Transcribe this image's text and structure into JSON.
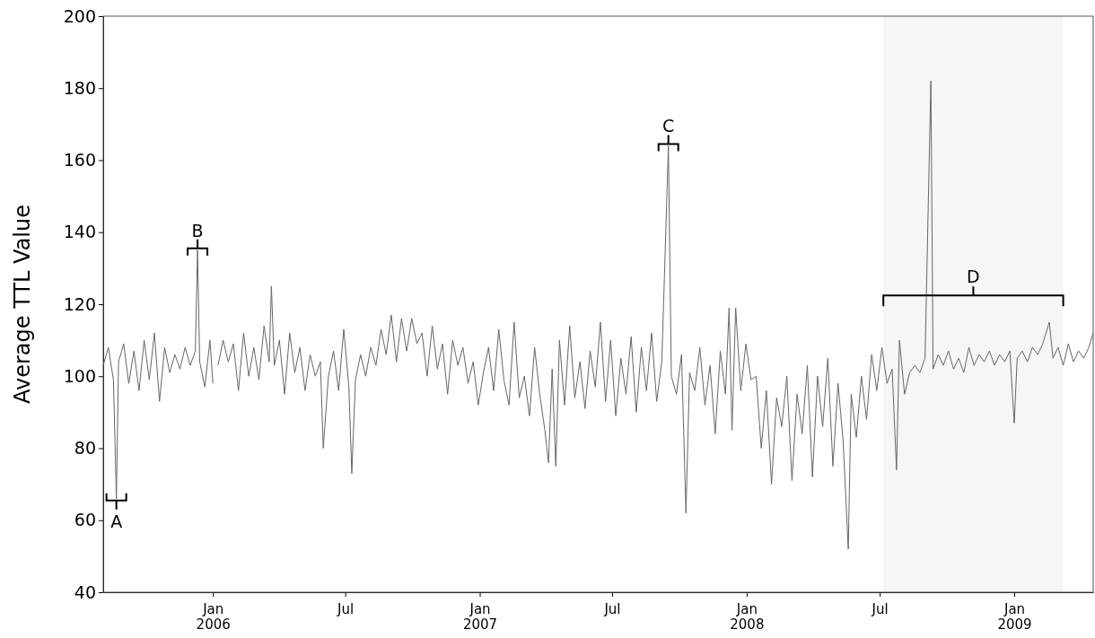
{
  "chart_data": {
    "type": "line",
    "ylabel": "Average TTL Value",
    "xlim": [
      "2005-08-04",
      "2009-04-19"
    ],
    "ylim": [
      40,
      200
    ],
    "yticks": [
      40,
      60,
      80,
      100,
      120,
      140,
      160,
      180,
      200
    ],
    "xticks": [
      {
        "value": "2006-01-01",
        "label": "Jan 2006"
      },
      {
        "value": "2006-07-01",
        "label": "Jul"
      },
      {
        "value": "2007-01-01",
        "label": "Jan 2007"
      },
      {
        "value": "2007-07-01",
        "label": "Jul"
      },
      {
        "value": "2008-01-01",
        "label": "Jan 2008"
      },
      {
        "value": "2008-07-01",
        "label": "Jul"
      },
      {
        "value": "2009-01-01",
        "label": "Jan 2009"
      }
    ],
    "grid": false,
    "marker": "none",
    "line_style": "solid",
    "annotations": [
      {
        "text": "A",
        "x": "2005-08-22",
        "y": 66
      },
      {
        "text": "B",
        "x": "2005-12-11",
        "y": 135
      },
      {
        "text": "C",
        "x": "2007-09-16",
        "y": 164
      }
    ],
    "bands": [
      {
        "axis": "x",
        "from": "2008-07-06",
        "to": "2009-03-09",
        "label": "D",
        "color": "#eeeeee"
      }
    ],
    "x": [
      "2005-08-04",
      "2005-08-11",
      "2005-08-18",
      "2005-08-22",
      "2005-08-25",
      "2005-09-01",
      "2005-09-08",
      "2005-09-15",
      "2005-09-22",
      "2005-09-29",
      "2005-10-06",
      "2005-10-13",
      "2005-10-20",
      "2005-10-27",
      "2005-11-03",
      "2005-11-10",
      "2005-11-17",
      "2005-11-24",
      "2005-12-01",
      "2005-12-08",
      "2005-12-11",
      "2005-12-14",
      "2005-12-21",
      "2005-12-28",
      "2006-01-01",
      "2006-01-03",
      "2006-01-08",
      "2006-01-15",
      "2006-01-22",
      "2006-01-29",
      "2006-02-05",
      "2006-02-12",
      "2006-02-19",
      "2006-02-26",
      "2006-03-05",
      "2006-03-12",
      "2006-03-19",
      "2006-03-22",
      "2006-03-26",
      "2006-04-02",
      "2006-04-09",
      "2006-04-16",
      "2006-04-23",
      "2006-04-30",
      "2006-05-07",
      "2006-05-14",
      "2006-05-21",
      "2006-05-28",
      "2006-06-01",
      "2006-06-08",
      "2006-06-15",
      "2006-06-22",
      "2006-06-29",
      "2006-07-06",
      "2006-07-10",
      "2006-07-15",
      "2006-07-22",
      "2006-07-29",
      "2006-08-05",
      "2006-08-12",
      "2006-08-19",
      "2006-08-26",
      "2006-09-02",
      "2006-09-09",
      "2006-09-16",
      "2006-09-23",
      "2006-09-30",
      "2006-10-07",
      "2006-10-14",
      "2006-10-21",
      "2006-10-28",
      "2006-11-04",
      "2006-11-11",
      "2006-11-18",
      "2006-11-25",
      "2006-12-02",
      "2006-12-09",
      "2006-12-16",
      "2006-12-23",
      "2006-12-30",
      "2007-01-06",
      "2007-01-13",
      "2007-01-20",
      "2007-01-27",
      "2007-02-03",
      "2007-02-10",
      "2007-02-17",
      "2007-02-24",
      "2007-03-03",
      "2007-03-10",
      "2007-03-17",
      "2007-03-24",
      "2007-03-31",
      "2007-04-05",
      "2007-04-10",
      "2007-04-15",
      "2007-04-20",
      "2007-04-27",
      "2007-05-04",
      "2007-05-11",
      "2007-05-18",
      "2007-05-25",
      "2007-06-01",
      "2007-06-08",
      "2007-06-15",
      "2007-06-22",
      "2007-06-29",
      "2007-07-06",
      "2007-07-13",
      "2007-07-20",
      "2007-07-27",
      "2007-08-03",
      "2007-08-10",
      "2007-08-17",
      "2007-08-24",
      "2007-08-31",
      "2007-09-07",
      "2007-09-16",
      "2007-09-20",
      "2007-09-27",
      "2007-10-04",
      "2007-10-10",
      "2007-10-15",
      "2007-10-22",
      "2007-10-29",
      "2007-11-05",
      "2007-11-12",
      "2007-11-19",
      "2007-11-26",
      "2007-12-03",
      "2007-12-08",
      "2007-12-12",
      "2007-12-17",
      "2007-12-24",
      "2007-12-31",
      "2008-01-07",
      "2008-01-14",
      "2008-01-21",
      "2008-01-28",
      "2008-02-04",
      "2008-02-11",
      "2008-02-18",
      "2008-02-25",
      "2008-03-03",
      "2008-03-10",
      "2008-03-17",
      "2008-03-24",
      "2008-03-31",
      "2008-04-07",
      "2008-04-14",
      "2008-04-21",
      "2008-04-28",
      "2008-05-05",
      "2008-05-12",
      "2008-05-19",
      "2008-05-23",
      "2008-05-30",
      "2008-06-06",
      "2008-06-13",
      "2008-06-20",
      "2008-06-27",
      "2008-07-04",
      "2008-07-11",
      "2008-07-18",
      "2008-07-24",
      "2008-07-28",
      "2008-08-04",
      "2008-08-11",
      "2008-08-18",
      "2008-08-25",
      "2008-09-01",
      "2008-09-09",
      "2008-09-12",
      "2008-09-19",
      "2008-09-26",
      "2008-10-03",
      "2008-10-10",
      "2008-10-17",
      "2008-10-24",
      "2008-10-31",
      "2008-11-07",
      "2008-11-14",
      "2008-11-21",
      "2008-11-28",
      "2008-12-05",
      "2008-12-12",
      "2008-12-19",
      "2008-12-26",
      "2009-01-01",
      "2009-01-05",
      "2009-01-12",
      "2009-01-19",
      "2009-01-26",
      "2009-02-02",
      "2009-02-09",
      "2009-02-18",
      "2009-02-23",
      "2009-03-02",
      "2009-03-09",
      "2009-03-16",
      "2009-03-23",
      "2009-03-30",
      "2009-04-06",
      "2009-04-13",
      "2009-04-19"
    ],
    "series": [
      {
        "color": "#666666",
        "values": [
          103,
          108,
          99,
          66,
          104,
          109,
          98,
          107,
          96,
          110,
          99,
          112,
          93,
          108,
          101,
          106,
          102,
          108,
          103,
          107,
          135,
          104,
          97,
          110,
          98,
          null,
          103,
          110,
          104,
          109,
          96,
          112,
          100,
          108,
          99,
          114,
          104,
          125,
          103,
          110,
          95,
          112,
          101,
          108,
          96,
          106,
          100,
          104,
          80,
          100,
          107,
          96,
          113,
          97,
          73,
          99,
          106,
          100,
          108,
          103,
          113,
          106,
          117,
          104,
          116,
          107,
          116,
          109,
          112,
          100,
          114,
          102,
          109,
          95,
          110,
          103,
          108,
          98,
          104,
          92,
          101,
          108,
          96,
          113,
          99,
          92,
          115,
          94,
          100,
          89,
          108,
          95,
          85,
          76,
          102,
          75,
          110,
          92,
          114,
          94,
          104,
          91,
          107,
          97,
          115,
          93,
          110,
          89,
          105,
          95,
          111,
          90,
          108,
          96,
          112,
          93,
          104,
          164,
          100,
          95,
          106,
          62,
          101,
          96,
          108,
          92,
          103,
          84,
          107,
          95,
          119,
          85,
          119,
          96,
          109,
          99,
          100,
          80,
          96,
          70,
          94,
          86,
          100,
          71,
          95,
          84,
          103,
          72,
          100,
          86,
          105,
          75,
          98,
          82,
          52,
          95,
          83,
          100,
          88,
          106,
          96,
          108,
          98,
          102,
          74,
          110,
          95,
          101,
          103,
          101,
          105,
          182,
          102,
          106,
          103,
          107,
          102,
          105,
          101,
          108,
          103,
          106,
          104,
          107,
          103,
          106,
          104,
          107,
          87,
          105,
          107,
          104,
          108,
          106,
          109,
          115,
          105,
          108,
          103,
          109,
          104,
          107,
          105,
          108,
          112
        ]
      }
    ]
  }
}
